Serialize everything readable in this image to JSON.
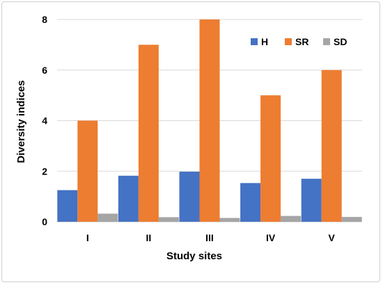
{
  "chart_data": {
    "type": "bar",
    "title": "",
    "xlabel": "Study sites",
    "ylabel": "Diversity indices",
    "categories": [
      "I",
      "II",
      "III",
      "IV",
      "V"
    ],
    "ylim": [
      0,
      8
    ],
    "yticks": [
      "0",
      "2",
      "4",
      "6",
      "8"
    ],
    "grid": true,
    "legend_position": "top-right",
    "series": [
      {
        "name": "H",
        "color": "#4472c4",
        "values": [
          1.25,
          1.82,
          1.98,
          1.53,
          1.7
        ]
      },
      {
        "name": "SR",
        "color": "#ed7d31",
        "values": [
          4,
          7,
          8,
          5,
          6
        ]
      },
      {
        "name": "SD",
        "color": "#a5a5a5",
        "values": [
          0.32,
          0.18,
          0.15,
          0.23,
          0.19
        ]
      }
    ]
  }
}
